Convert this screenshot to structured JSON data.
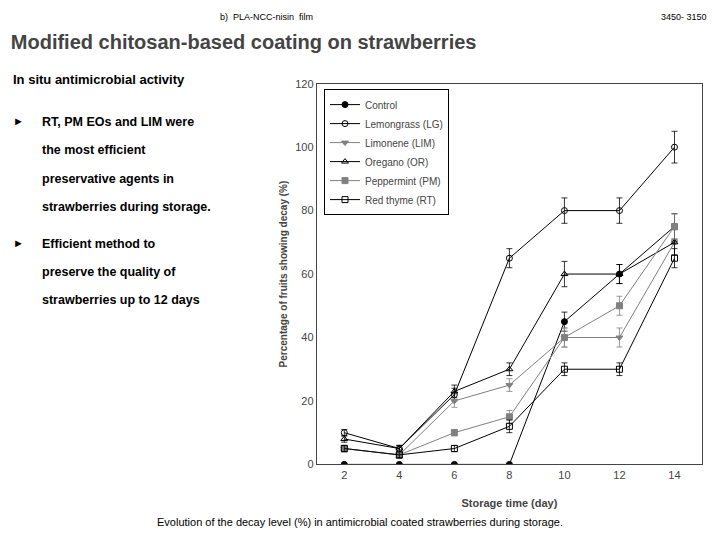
{
  "chart_data": {
    "type": "line",
    "title": "Modified chitosan-based coating on strawberries",
    "subtitle": "In situ antimicrobial activity",
    "annotations": [
      "b)  PLA-NCC-nisin  film",
      "3450- 3150",
      "►",
      "RT, PM EOs and LIM were",
      "the most efficient",
      "preservative agents in",
      "strawberries during storage.",
      "►",
      "Efficient method to",
      "preserve the quality of",
      "strawberries up to 12 days",
      "Evolution of the decay level (%) in antimicrobial coated strawberries during storage."
    ],
    "xlabel": "Storage time (day)",
    "ylabel": "Percentage of fruits showing decay (%)",
    "x": [
      2,
      4,
      6,
      8,
      10,
      12,
      14
    ],
    "series": [
      {
        "name": "Control",
        "color": "black",
        "marker": "circle",
        "values": [
          0,
          0,
          0,
          0,
          45,
          60,
          75
        ],
        "error": [
          0,
          0,
          0,
          0,
          3,
          3,
          4
        ]
      },
      {
        "name": "Lemongrass (LG)",
        "color": "black",
        "marker": "circle-open",
        "values": [
          10,
          5,
          22,
          65,
          80,
          80,
          100
        ],
        "error": [
          1,
          1,
          2,
          3,
          4,
          4,
          5
        ]
      },
      {
        "name": "Limonene (LIM)",
        "color": "gray",
        "marker": "triangle-down",
        "values": [
          5,
          3,
          20,
          25,
          40,
          40,
          70
        ],
        "error": [
          1,
          1,
          2,
          2,
          3,
          3,
          4
        ]
      },
      {
        "name": "Oregano (OR)",
        "color": "black",
        "marker": "triangle-up-open",
        "values": [
          8,
          5,
          23,
          30,
          60,
          60,
          70
        ],
        "error": [
          1,
          1,
          2,
          2,
          4,
          3,
          4
        ]
      },
      {
        "name": "Peppermint (PM)",
        "color": "gray",
        "marker": "square",
        "values": [
          5,
          3,
          10,
          15,
          40,
          50,
          75
        ],
        "error": [
          1,
          1,
          1,
          2,
          3,
          3,
          4
        ]
      },
      {
        "name": "Red thyme (RT)",
        "color": "black",
        "marker": "square-open",
        "values": [
          5,
          3,
          5,
          12,
          30,
          30,
          65
        ],
        "error": [
          1,
          1,
          1,
          2,
          2,
          2,
          3
        ]
      }
    ],
    "xlim": [
      1,
      15
    ],
    "xticks": [
      2,
      4,
      6,
      8,
      10,
      12,
      14
    ],
    "ylim": [
      0,
      120
    ],
    "yticks": [
      0,
      20,
      40,
      60,
      80,
      100,
      120
    ],
    "grid": false,
    "legend": "upper left"
  }
}
